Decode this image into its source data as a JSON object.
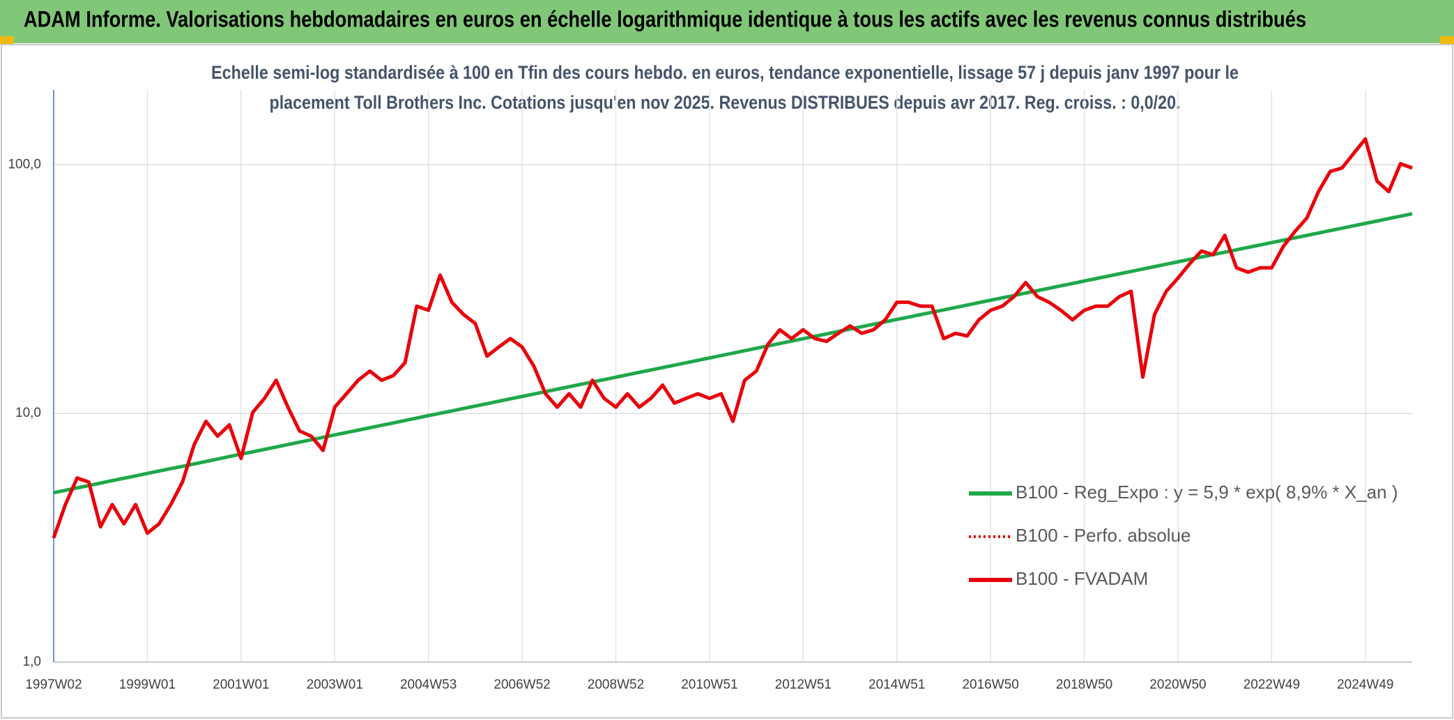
{
  "chart_data": {
    "type": "line",
    "title": "ADAM Informe. Valorisations hebdomadaires en euros en échelle logarithmique identique à tous les actifs avec les revenus connus distribués",
    "subtitle": [
      "Echelle semi-log standardisée à 100 en Tfin des cours hebdo. en euros, tendance exponentielle, lissage 57 j depuis janv 1997 pour le",
      "placement Toll Brothers Inc. Cotations jusqu'en nov 2025. Revenus DISTRIBUES depuis avr 2017. Reg. croiss. : 0,0/20."
    ],
    "categories": [
      "1997W02",
      null,
      null,
      null,
      null,
      null,
      null,
      null,
      "1999W01",
      null,
      null,
      null,
      null,
      null,
      null,
      null,
      "2001W01",
      null,
      null,
      null,
      null,
      null,
      null,
      null,
      "2003W01",
      null,
      null,
      null,
      null,
      null,
      null,
      null,
      "2004W53",
      null,
      null,
      null,
      null,
      null,
      null,
      null,
      "2006W52",
      null,
      null,
      null,
      null,
      null,
      null,
      null,
      "2008W52",
      null,
      null,
      null,
      null,
      null,
      null,
      null,
      "2010W51",
      null,
      null,
      null,
      null,
      null,
      null,
      null,
      "2012W51",
      null,
      null,
      null,
      null,
      null,
      null,
      null,
      "2014W51",
      null,
      null,
      null,
      null,
      null,
      null,
      null,
      "2016W50",
      null,
      null,
      null,
      null,
      null,
      null,
      null,
      "2018W50",
      null,
      null,
      null,
      null,
      null,
      null,
      null,
      "2020W50",
      null,
      null,
      null,
      null,
      null,
      null,
      null,
      "2022W49",
      null,
      null,
      null,
      null,
      null,
      null,
      null,
      "2024W49",
      null,
      null,
      null,
      null
    ],
    "log_scale": true,
    "grid": true,
    "legend": "right",
    "ylim": [
      1,
      200
    ],
    "yticks": [
      {
        "value": 1,
        "label": "1,0"
      },
      {
        "value": 10,
        "label": "10,0"
      },
      {
        "value": 100,
        "label": "100,0"
      }
    ],
    "series": [
      {
        "name": "B100 - Reg_Expo : y = 5,9 * exp( 8,9% *  X_an )",
        "color": "#1fa84a",
        "style": "solid",
        "values": [
          4.8,
          4.91,
          5.02,
          5.13,
          5.25,
          5.37,
          5.49,
          5.61,
          5.74,
          5.87,
          6.0,
          6.13,
          6.27,
          6.41,
          6.56,
          6.71,
          6.86,
          7.01,
          7.17,
          7.33,
          7.5,
          7.67,
          7.84,
          8.02,
          8.2,
          8.38,
          8.57,
          8.76,
          8.96,
          9.16,
          9.37,
          9.58,
          9.8,
          10.02,
          10.24,
          10.47,
          10.71,
          10.95,
          11.2,
          11.45,
          11.71,
          11.97,
          12.24,
          12.52,
          12.8,
          13.09,
          13.38,
          13.68,
          13.99,
          14.31,
          14.63,
          14.96,
          15.3,
          15.64,
          15.99,
          16.35,
          16.72,
          17.1,
          17.48,
          17.88,
          18.28,
          18.69,
          19.11,
          19.54,
          19.98,
          20.43,
          20.89,
          21.36,
          21.84,
          22.33,
          22.84,
          23.35,
          23.88,
          24.41,
          24.96,
          25.52,
          26.1,
          26.68,
          27.28,
          27.9,
          28.53,
          29.17,
          29.82,
          30.49,
          31.18,
          31.88,
          32.6,
          33.33,
          34.08,
          34.85,
          35.63,
          36.43,
          37.25,
          38.09,
          38.95,
          39.82,
          40.72,
          41.63,
          42.57,
          43.53,
          44.51,
          45.51,
          46.53,
          47.58,
          48.65,
          49.74,
          50.86,
          52.0,
          53.17,
          54.37,
          55.59,
          56.84,
          58.12,
          59.43,
          60.77,
          62.13,
          63.53
        ]
      },
      {
        "name": "B100 - Perfo. absolue",
        "color": "#e8000b",
        "style": "dotted",
        "values": [
          3.16,
          4.3,
          5.5,
          5.3,
          3.5,
          4.3,
          3.6,
          4.3,
          3.3,
          3.6,
          4.3,
          5.3,
          7.5,
          9.3,
          8.1,
          9,
          6.6,
          10.1,
          11.5,
          13.6,
          10.6,
          8.5,
          8.1,
          7.1,
          10.6,
          12,
          13.6,
          14.8,
          13.6,
          14.2,
          16,
          27,
          26,
          36,
          28,
          25,
          23,
          17,
          18.5,
          20,
          18.5,
          15.5,
          12,
          10.6,
          12,
          10.6,
          13.6,
          11.5,
          10.6,
          12,
          10.6,
          11.5,
          13,
          11,
          11.5,
          12,
          11.5,
          12,
          9.3,
          13.6,
          14.8,
          19,
          21.7,
          20,
          21.7,
          20,
          19.5,
          21,
          22.5,
          21,
          21.7,
          23.8,
          28,
          28,
          27,
          27,
          20,
          21,
          20.5,
          23.8,
          26,
          27,
          29.5,
          33.6,
          29.5,
          28,
          26,
          23.8,
          26,
          27,
          27,
          29.5,
          31,
          14,
          25,
          31,
          35,
          40,
          45,
          43.5,
          52,
          38.5,
          37,
          38.5,
          38.5,
          47,
          54,
          61,
          78,
          94,
          97,
          111,
          127,
          86,
          78,
          101,
          97
        ]
      },
      {
        "name": "B100 - FVADAM",
        "color": "#e8000b",
        "style": "solid",
        "values": [
          3.16,
          4.3,
          5.5,
          5.3,
          3.5,
          4.3,
          3.6,
          4.3,
          3.3,
          3.6,
          4.3,
          5.3,
          7.5,
          9.3,
          8.1,
          9,
          6.6,
          10.1,
          11.5,
          13.6,
          10.6,
          8.5,
          8.1,
          7.1,
          10.6,
          12,
          13.6,
          14.8,
          13.6,
          14.2,
          16,
          27,
          26,
          36,
          28,
          25,
          23,
          17,
          18.5,
          20,
          18.5,
          15.5,
          12,
          10.6,
          12,
          10.6,
          13.6,
          11.5,
          10.6,
          12,
          10.6,
          11.5,
          13,
          11,
          11.5,
          12,
          11.5,
          12,
          9.3,
          13.6,
          14.8,
          19,
          21.7,
          20,
          21.7,
          20,
          19.5,
          21,
          22.5,
          21,
          21.7,
          23.8,
          28,
          28,
          27,
          27,
          20,
          21,
          20.5,
          23.8,
          26,
          27,
          29.5,
          33.6,
          29.5,
          28,
          26,
          23.8,
          26,
          27,
          27,
          29.5,
          31,
          14,
          25,
          31,
          35,
          40,
          45,
          43.5,
          52,
          38.5,
          37,
          38.5,
          38.5,
          47,
          54,
          61,
          78,
          94,
          97,
          111,
          127,
          86,
          78,
          101,
          97
        ]
      }
    ]
  }
}
